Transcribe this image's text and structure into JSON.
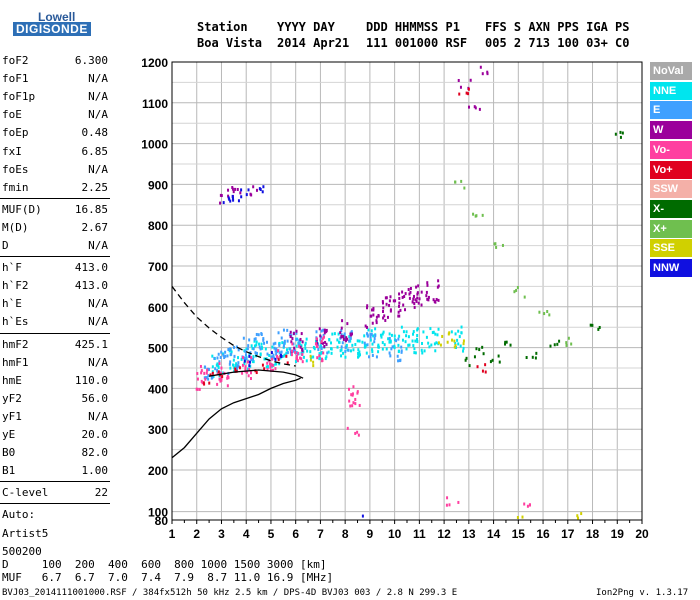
{
  "logo": {
    "line1": "Lowell",
    "line2": "DIGISONDE"
  },
  "header": {
    "labels": [
      "Station",
      "YYYY DAY",
      "DDD HHMMSS P1",
      "FFS S AXN PPS IGA PS"
    ],
    "values": [
      "Boa Vista",
      "2014 Apr21",
      "111 001000 RSF",
      "005 2 713 100 03+ C0"
    ]
  },
  "params": [
    {
      "label": "foF2",
      "value": "6.300"
    },
    {
      "label": "foF1",
      "value": "N/A"
    },
    {
      "label": "foF1p",
      "value": "N/A"
    },
    {
      "label": "foE",
      "value": "N/A"
    },
    {
      "label": "foEp",
      "value": "0.48"
    },
    {
      "label": "fxI",
      "value": "6.85"
    },
    {
      "label": "foEs",
      "value": "N/A"
    },
    {
      "label": "fmin",
      "value": "2.25"
    },
    {
      "label": "MUF(D)",
      "value": "16.85"
    },
    {
      "label": "M(D)",
      "value": "2.67"
    },
    {
      "label": "D",
      "value": "N/A"
    },
    {
      "label": "h`F",
      "value": "413.0"
    },
    {
      "label": "h`F2",
      "value": "413.0"
    },
    {
      "label": "h`E",
      "value": "N/A"
    },
    {
      "label": "h`Es",
      "value": "N/A"
    },
    {
      "label": "hmF2",
      "value": "425.1"
    },
    {
      "label": "hmF1",
      "value": "N/A"
    },
    {
      "label": "hmE",
      "value": "110.0"
    },
    {
      "label": "yF2",
      "value": "56.0"
    },
    {
      "label": "yF1",
      "value": "N/A"
    },
    {
      "label": "yE",
      "value": "20.0"
    },
    {
      "label": "B0",
      "value": "82.0"
    },
    {
      "label": "B1",
      "value": "1.00"
    },
    {
      "label": "C-level",
      "value": "22"
    },
    {
      "label": "Auto:",
      "value": ""
    },
    {
      "label": "Artist5",
      "value": ""
    },
    {
      "label": "500200",
      "value": ""
    }
  ],
  "legend": [
    {
      "label": "NoVal",
      "color": "#a9a9a9"
    },
    {
      "label": "NNE",
      "color": "#00e5ee"
    },
    {
      "label": "E",
      "color": "#3fa0ff"
    },
    {
      "label": "W",
      "color": "#9b009b"
    },
    {
      "label": "Vo-",
      "color": "#ff3fa0"
    },
    {
      "label": "Vo+",
      "color": "#e0001f"
    },
    {
      "label": "SSW",
      "color": "#f4b0a8"
    },
    {
      "label": "X-",
      "color": "#006b00"
    },
    {
      "label": "X+",
      "color": "#6fbf4f"
    },
    {
      "label": "SSE",
      "color": "#d0d000"
    },
    {
      "label": "NNW",
      "color": "#1010e0"
    }
  ],
  "footer": {
    "d_row": "D     100  200  400  600  800 1000 1500 3000 [km]",
    "muf_row": "MUF   6.7  6.7  7.0  7.4  7.9  8.7 11.0 16.9 [MHz]",
    "info": "BVJ03_2014111001000.RSF / 384fx512h 50 kHz 2.5 km / DPS-4D BVJ03 003 / 2.8 N 299.3 E",
    "version": "Ion2Png v. 1.3.17"
  },
  "chart_data": {
    "type": "scatter",
    "xlabel": "",
    "ylabel": "",
    "xlim": [
      1,
      20
    ],
    "ylim": [
      80,
      1200
    ],
    "x_ticks": [
      1,
      2,
      3,
      4,
      5,
      6,
      7,
      8,
      9,
      10,
      11,
      12,
      13,
      14,
      15,
      16,
      17,
      18,
      19,
      20
    ],
    "y_ticks": [
      80,
      100,
      200,
      300,
      400,
      500,
      600,
      700,
      800,
      900,
      1000,
      1100,
      1200
    ],
    "grid": true,
    "legend_position": "right",
    "series": [
      {
        "name": "NNE",
        "points": [
          [
            2.8,
            460
          ],
          [
            3.5,
            470
          ],
          [
            4.0,
            480
          ],
          [
            4.5,
            490
          ],
          [
            5.0,
            485
          ],
          [
            5.5,
            490
          ],
          [
            6.0,
            495
          ],
          [
            6.5,
            500
          ],
          [
            7.0,
            505
          ],
          [
            7.5,
            510
          ],
          [
            8.0,
            505
          ],
          [
            8.5,
            510
          ],
          [
            9.0,
            520
          ],
          [
            9.5,
            515
          ],
          [
            10.0,
            520
          ],
          [
            10.5,
            525
          ],
          [
            11.0,
            520
          ],
          [
            11.5,
            525
          ],
          [
            12.5,
            525
          ]
        ]
      },
      {
        "name": "E",
        "points": [
          [
            2.5,
            450
          ],
          [
            3.0,
            470
          ],
          [
            3.5,
            480
          ],
          [
            4.0,
            500
          ],
          [
            4.5,
            510
          ],
          [
            5.0,
            500
          ],
          [
            5.5,
            520
          ],
          [
            6.0,
            510
          ],
          [
            7.0,
            520
          ],
          [
            8.0,
            520
          ],
          [
            9.0,
            510
          ],
          [
            10.0,
            500
          ]
        ]
      },
      {
        "name": "W",
        "points": [
          [
            3.1,
            870
          ],
          [
            3.3,
            880
          ],
          [
            3.6,
            890
          ],
          [
            4.2,
            890
          ],
          [
            6.0,
            520
          ],
          [
            7.0,
            530
          ],
          [
            8.0,
            550
          ],
          [
            9.0,
            580
          ],
          [
            9.5,
            600
          ],
          [
            10.0,
            610
          ],
          [
            10.5,
            620
          ],
          [
            11.0,
            630
          ],
          [
            11.5,
            640
          ],
          [
            12.8,
            1150
          ],
          [
            13.2,
            1100
          ],
          [
            13.6,
            1180
          ]
        ]
      },
      {
        "name": "Vo-",
        "points": [
          [
            2.2,
            430
          ],
          [
            3.0,
            440
          ],
          [
            4.0,
            450
          ],
          [
            5.0,
            470
          ],
          [
            6.0,
            490
          ],
          [
            7.0,
            500
          ],
          [
            8.3,
            390
          ],
          [
            8.3,
            300
          ],
          [
            12.3,
            130
          ],
          [
            15.2,
            120
          ]
        ]
      },
      {
        "name": "Vo+",
        "points": [
          [
            2.3,
            425
          ],
          [
            2.8,
            435
          ],
          [
            3.5,
            445
          ],
          [
            4.5,
            455
          ],
          [
            5.5,
            475
          ],
          [
            12.8,
            1130
          ],
          [
            13.5,
            450
          ]
        ]
      },
      {
        "name": "X-",
        "points": [
          [
            13.0,
            470
          ],
          [
            13.5,
            500
          ],
          [
            14.0,
            480
          ],
          [
            14.5,
            510
          ],
          [
            15.5,
            490
          ],
          [
            16.5,
            510
          ],
          [
            18.0,
            560
          ],
          [
            19.0,
            1020
          ]
        ]
      },
      {
        "name": "X+",
        "points": [
          [
            12.6,
            900
          ],
          [
            13.3,
            820
          ],
          [
            14.2,
            760
          ],
          [
            15.0,
            640
          ],
          [
            16.0,
            580
          ],
          [
            17.0,
            520
          ]
        ]
      },
      {
        "name": "SSE",
        "points": [
          [
            6.5,
            470
          ],
          [
            12.0,
            520
          ],
          [
            12.3,
            530
          ],
          [
            12.6,
            510
          ],
          [
            15.0,
            85
          ],
          [
            17.5,
            90
          ]
        ]
      },
      {
        "name": "NNW",
        "points": [
          [
            3.2,
            860
          ],
          [
            3.5,
            875
          ],
          [
            3.9,
            885
          ],
          [
            4.6,
            895
          ],
          [
            4.0,
            470
          ],
          [
            5.2,
            480
          ],
          [
            8.5,
            88
          ]
        ]
      }
    ],
    "curves": {
      "ordinary_trace": [
        [
          1.0,
          230
        ],
        [
          1.5,
          255
        ],
        [
          2.0,
          290
        ],
        [
          2.5,
          325
        ],
        [
          3.0,
          350
        ],
        [
          3.5,
          365
        ],
        [
          4.0,
          375
        ],
        [
          4.5,
          385
        ],
        [
          5.0,
          400
        ],
        [
          5.5,
          412
        ],
        [
          6.0,
          420
        ],
        [
          6.2,
          425
        ]
      ],
      "x_trace_dashed": [
        [
          1.0,
          650
        ],
        [
          1.5,
          610
        ],
        [
          2.0,
          575
        ],
        [
          2.5,
          548
        ],
        [
          3.0,
          525
        ],
        [
          3.5,
          505
        ],
        [
          4.0,
          490
        ],
        [
          4.5,
          478
        ],
        [
          5.0,
          468
        ],
        [
          5.5,
          460
        ],
        [
          6.0,
          455
        ]
      ],
      "f2_nose": [
        [
          2.5,
          430
        ],
        [
          3.5,
          440
        ],
        [
          4.5,
          445
        ],
        [
          5.5,
          440
        ],
        [
          6.0,
          433
        ],
        [
          6.3,
          425
        ]
      ]
    }
  }
}
